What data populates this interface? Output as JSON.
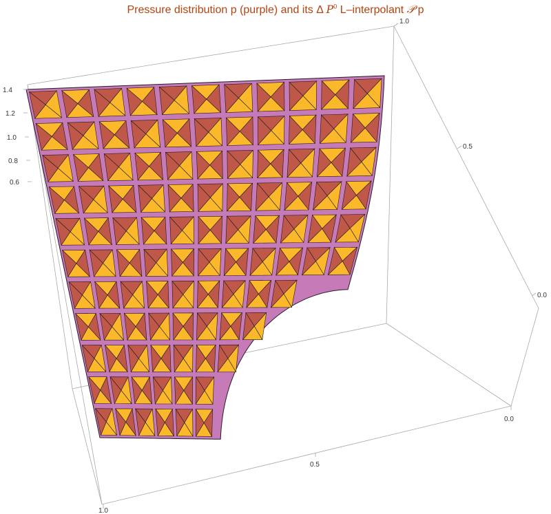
{
  "chart_data": {
    "type": "surface3d",
    "title": {
      "prefix": "Pressure distribution p (purple) and its ",
      "delta": "Δ ",
      "element_space": "P",
      "element_space_sup": "0",
      "middle": " L–interpolant ",
      "operator": "𝒫",
      "suffix": " p"
    },
    "series": [
      {
        "name": "p (purple)",
        "role": "pressure distribution",
        "color": "#c77ab8"
      },
      {
        "name": "𝒫 p",
        "role": "ΔP0 L-interpolant",
        "color_light": "#fbb82a",
        "color_dark": "#c0584a"
      }
    ],
    "z_ticks": [
      "0.6",
      "0.8",
      "1.0",
      "1.2",
      "1.4"
    ],
    "right_ticks": [
      "1.0",
      "0.5",
      "0.0"
    ],
    "front_right_ticks": [
      "0.0"
    ],
    "bottom_ticks": [
      "0.5",
      "1.0"
    ],
    "domain": "unit square with a quarter-circle hole centered at the corner (1,0)",
    "mesh": "triangulated surface with piecewise-constant triangle interpolant",
    "colors": {
      "title": "#b5430f",
      "box": "#a8a8a8",
      "edge": "#1a1a1a"
    }
  }
}
